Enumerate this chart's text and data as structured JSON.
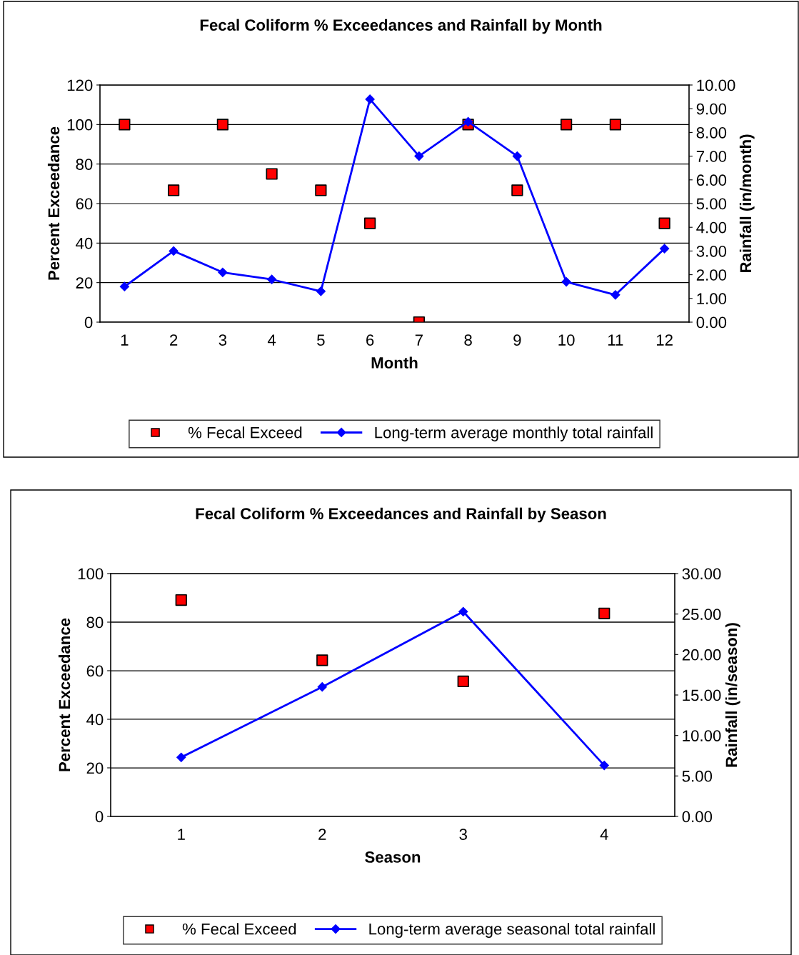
{
  "chart_data": [
    {
      "type": "line",
      "title": "Fecal Coliform % Exceedances and Rainfall by Month",
      "xlabel": "Month",
      "ylabel": "Percent Exceedance",
      "y2label": "Rainfall (in/month)",
      "categories": [
        "1",
        "2",
        "3",
        "4",
        "5",
        "6",
        "7",
        "8",
        "9",
        "10",
        "11",
        "12"
      ],
      "series": [
        {
          "name": "% Fecal Exceed",
          "type": "scatter",
          "marker": "square",
          "color": "#ff0000",
          "values": [
            100,
            66.7,
            100,
            75,
            66.7,
            50,
            0,
            100,
            66.7,
            100,
            100,
            50
          ]
        },
        {
          "name": "Long-term average monthly total rainfall",
          "marker": "diamond",
          "axis": "y2",
          "color": "#0000ff",
          "values": [
            1.5,
            3.0,
            2.1,
            1.8,
            1.3,
            9.4,
            7.0,
            8.45,
            7.0,
            1.7,
            1.15,
            3.1
          ]
        }
      ],
      "ylim": [
        0,
        120
      ],
      "yticks": [
        0,
        20,
        40,
        60,
        80,
        100,
        120
      ],
      "y2lim": [
        0,
        10
      ],
      "y2ticks": [
        {
          "value": 0,
          "label": "0.00"
        },
        {
          "value": 1,
          "label": "1.00"
        },
        {
          "value": 2,
          "label": "2.00"
        },
        {
          "value": 3,
          "label": "3.00"
        },
        {
          "value": 4,
          "label": "4.00"
        },
        {
          "value": 5,
          "label": "5.00"
        },
        {
          "value": 6,
          "label": "6.00"
        },
        {
          "value": 7,
          "label": "7.00"
        },
        {
          "value": 8,
          "label": "8.00"
        },
        {
          "value": 9,
          "label": "9.00"
        },
        {
          "value": 10,
          "label": "10.00"
        }
      ],
      "grid": "y",
      "legend": "bottom"
    },
    {
      "type": "line",
      "title": "Fecal Coliform % Exceedances and Rainfall by Season",
      "xlabel": "Season",
      "ylabel": "Percent Exceedance",
      "y2label": "Rainfall (in/season)",
      "categories": [
        "1",
        "2",
        "3",
        "4"
      ],
      "series": [
        {
          "name": "% Fecal Exceed",
          "type": "scatter",
          "marker": "square",
          "color": "#ff0000",
          "values": [
            89.1,
            64.3,
            55.6,
            83.6
          ]
        },
        {
          "name": "Long-term average seasonal total rainfall",
          "marker": "diamond",
          "axis": "y2",
          "color": "#0000ff",
          "values": [
            7.3,
            16.0,
            25.3,
            6.3
          ]
        }
      ],
      "ylim": [
        0,
        100
      ],
      "yticks": [
        0,
        20,
        40,
        60,
        80,
        100
      ],
      "y2lim": [
        0,
        30
      ],
      "y2ticks": [
        {
          "value": 0,
          "label": "0.00"
        },
        {
          "value": 5,
          "label": "5.00"
        },
        {
          "value": 10,
          "label": "10.00"
        },
        {
          "value": 15,
          "label": "15.00"
        },
        {
          "value": 20,
          "label": "20.00"
        },
        {
          "value": 25,
          "label": "25.00"
        },
        {
          "value": 30,
          "label": "30.00"
        }
      ],
      "grid": "y",
      "legend": "bottom"
    }
  ]
}
